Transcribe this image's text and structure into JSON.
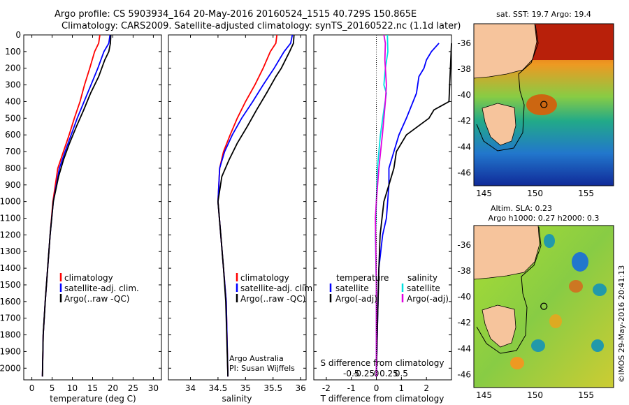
{
  "header": {
    "line1": "Argo profile: CS 5903934_164 20-May-2016 20160524_1515 40.729S 150.865E",
    "line2": "Climatology: CARS2009. Satellite-adjusted climatology: synTS_20160522.nc (1.1d later)"
  },
  "colors": {
    "climatology": "#ff0000",
    "satellite": "#0000ff",
    "argo": "#000000",
    "cyan": "#00e0e0",
    "magenta": "#e000e0",
    "land": "#f6c49c"
  },
  "credit": {
    "line1": "Argo Australia",
    "line2": "PI: Susan Wijffels",
    "stamp": "©IMOS 29-May-2016 20:41:13"
  },
  "chart_data": [
    {
      "type": "line",
      "id": "temperature",
      "xlabel": "temperature (deg C)",
      "ylabel": "",
      "xlim": [
        -2,
        32
      ],
      "ylim": [
        2070,
        0
      ],
      "xticks": [
        0,
        5,
        10,
        15,
        20,
        25,
        30
      ],
      "yticks": [
        0,
        100,
        200,
        300,
        400,
        500,
        600,
        700,
        800,
        900,
        1000,
        1100,
        1200,
        1300,
        1400,
        1500,
        1600,
        1700,
        1800,
        1900,
        2000
      ],
      "legend": {
        "placement": "lower-left",
        "entries": [
          "climatology",
          "satellite-adj. clim.",
          "Argo(..raw -QC)"
        ]
      },
      "series": [
        {
          "name": "climatology",
          "color_key": "climatology",
          "x": [
            16.8,
            16.5,
            15.5,
            14.3,
            13.0,
            11.9,
            10.5,
            9.2,
            7.8,
            6.4,
            5.2,
            4.5,
            3.9,
            3.3,
            2.8,
            2.6
          ],
          "y": [
            0,
            50,
            100,
            200,
            300,
            400,
            500,
            600,
            700,
            800,
            1000,
            1200,
            1400,
            1600,
            1800,
            2050
          ]
        },
        {
          "name": "satellite-adj. clim.",
          "color_key": "satellite",
          "x": [
            19.3,
            19.0,
            17.8,
            16.3,
            14.6,
            12.9,
            11.2,
            9.7,
            8.2,
            6.8,
            5.3,
            4.5,
            3.9,
            3.3,
            2.8,
            2.6
          ],
          "y": [
            0,
            50,
            100,
            200,
            300,
            400,
            500,
            600,
            700,
            800,
            1000,
            1200,
            1400,
            1600,
            1800,
            2050
          ]
        },
        {
          "name": "Argo(..raw -QC)",
          "color_key": "argo",
          "x": [
            19.5,
            19.4,
            19.0,
            18.0,
            16.5,
            14.5,
            12.8,
            11.0,
            9.3,
            7.8,
            6.6,
            5.3,
            4.5,
            3.9,
            3.3,
            2.8,
            2.6
          ],
          "y": [
            0,
            50,
            100,
            150,
            250,
            350,
            450,
            550,
            650,
            750,
            850,
            1000,
            1200,
            1400,
            1600,
            1800,
            2050
          ]
        }
      ]
    },
    {
      "type": "line",
      "id": "salinity",
      "xlabel": "salinity",
      "ylabel": "",
      "xlim": [
        33.6,
        36.1
      ],
      "ylim": [
        2070,
        0
      ],
      "xticks": [
        34,
        34.5,
        35,
        35.5,
        36
      ],
      "legend": {
        "placement": "lower-right",
        "entries": [
          "climatology",
          "satellite-adj. clim.",
          "Argo(..raw -QC)"
        ]
      },
      "series": [
        {
          "name": "climatology",
          "color_key": "climatology",
          "x": [
            35.57,
            35.55,
            35.45,
            35.32,
            35.17,
            35.0,
            34.85,
            34.72,
            34.6,
            34.53,
            34.5,
            34.55,
            34.6,
            34.65,
            34.68
          ],
          "y": [
            0,
            50,
            100,
            200,
            300,
            400,
            500,
            600,
            700,
            800,
            1000,
            1200,
            1400,
            1600,
            2050
          ]
        },
        {
          "name": "satellite-adj. clim.",
          "color_key": "satellite",
          "x": [
            35.85,
            35.82,
            35.7,
            35.52,
            35.32,
            35.13,
            34.93,
            34.76,
            34.62,
            34.53,
            34.5,
            34.55,
            34.6,
            34.65,
            34.68
          ],
          "y": [
            0,
            50,
            100,
            200,
            300,
            400,
            500,
            600,
            700,
            800,
            1000,
            1200,
            1400,
            1600,
            2050
          ]
        },
        {
          "name": "Argo(..raw -QC)",
          "color_key": "argo",
          "x": [
            35.88,
            35.87,
            35.8,
            35.65,
            35.55,
            35.38,
            35.2,
            35.03,
            34.85,
            34.7,
            34.57,
            34.5,
            34.55,
            34.6,
            34.64,
            34.68
          ],
          "y": [
            0,
            50,
            100,
            200,
            250,
            350,
            450,
            550,
            650,
            750,
            850,
            1000,
            1200,
            1400,
            1600,
            2050
          ]
        }
      ]
    },
    {
      "type": "line",
      "id": "difference",
      "xlabel": "T difference from climatology",
      "xlabel_top": "S difference from climatology",
      "ylabel": "",
      "xlim": [
        -2.5,
        3.0
      ],
      "ylim": [
        2070,
        0
      ],
      "xticks": [
        -2,
        -1,
        0,
        1,
        2
      ],
      "s_ticks": [
        -0.5,
        -0.25,
        0,
        0.25,
        0.5
      ],
      "s_tick_labels": [
        "-0.5",
        "-0.25",
        "0",
        "0.25",
        "0.5"
      ],
      "legend": {
        "placement": "lower-center",
        "temperature_title": "temperature",
        "salinity_title": "salinity",
        "entries": [
          "satellite",
          "Argo(-adj)",
          "satellite",
          "Argo(-adj)"
        ]
      },
      "series": [
        {
          "name": "satellite",
          "group": "temperature",
          "color_key": "satellite",
          "x": [
            2.5,
            2.2,
            2.0,
            1.9,
            1.7,
            1.6,
            1.2,
            0.9,
            0.7,
            0.5,
            0.5,
            0.45,
            0.4,
            0.25,
            0.1,
            0.05,
            0.0
          ],
          "y": [
            50,
            100,
            150,
            200,
            250,
            350,
            500,
            600,
            700,
            800,
            900,
            1000,
            1100,
            1200,
            1400,
            1700,
            2050
          ]
        },
        {
          "name": "Argo(-adj)",
          "group": "temperature",
          "color_key": "argo",
          "x": [
            3.0,
            2.9,
            2.3,
            2.1,
            1.2,
            0.8,
            0.7,
            0.5,
            0.3,
            0.15,
            0.1,
            0.05,
            0.0
          ],
          "y": [
            50,
            400,
            450,
            500,
            600,
            700,
            800,
            900,
            1000,
            1200,
            1400,
            1700,
            2050
          ]
        },
        {
          "name": "satellite",
          "group": "salinity",
          "color_key": "cyan",
          "x": [
            0.22,
            0.23,
            0.18,
            0.15,
            0.2,
            0.15,
            0.08,
            0.02,
            0.0,
            -0.02,
            0.0,
            0.0
          ],
          "y": [
            0,
            100,
            200,
            300,
            350,
            450,
            600,
            800,
            1000,
            1200,
            1500,
            2050
          ]
        },
        {
          "name": "Argo(-adj)",
          "group": "salinity",
          "color_key": "magenta",
          "x": [
            0.15,
            0.18,
            0.17,
            0.2,
            0.18,
            0.15,
            0.12,
            0.05,
            0.0,
            -0.02,
            0.0,
            0.0
          ],
          "y": [
            0,
            50,
            150,
            300,
            400,
            500,
            600,
            800,
            1000,
            1100,
            1500,
            2050
          ]
        }
      ]
    },
    {
      "type": "heatmap",
      "id": "sst_map",
      "title": "sat. SST: 19.7  Argo: 19.4",
      "xlim": [
        144,
        157.7
      ],
      "ylim": [
        -47,
        -34.5
      ],
      "xticks": [
        145,
        150,
        155
      ],
      "yticks": [
        -36,
        -38,
        -40,
        -42,
        -44,
        -46
      ],
      "marker": {
        "lon": 150.865,
        "lat": -40.729
      }
    },
    {
      "type": "heatmap",
      "id": "sla_map",
      "title": "Altim. SLA: 0.23",
      "subtitle": "Argo h1000: 0.27 h2000: 0.3",
      "xlim": [
        144,
        157.7
      ],
      "ylim": [
        -47,
        -34.5
      ],
      "xticks": [
        145,
        150,
        155
      ],
      "yticks": [
        -36,
        -38,
        -40,
        -42,
        -44,
        -46
      ],
      "marker": {
        "lon": 150.865,
        "lat": -40.729
      }
    }
  ]
}
